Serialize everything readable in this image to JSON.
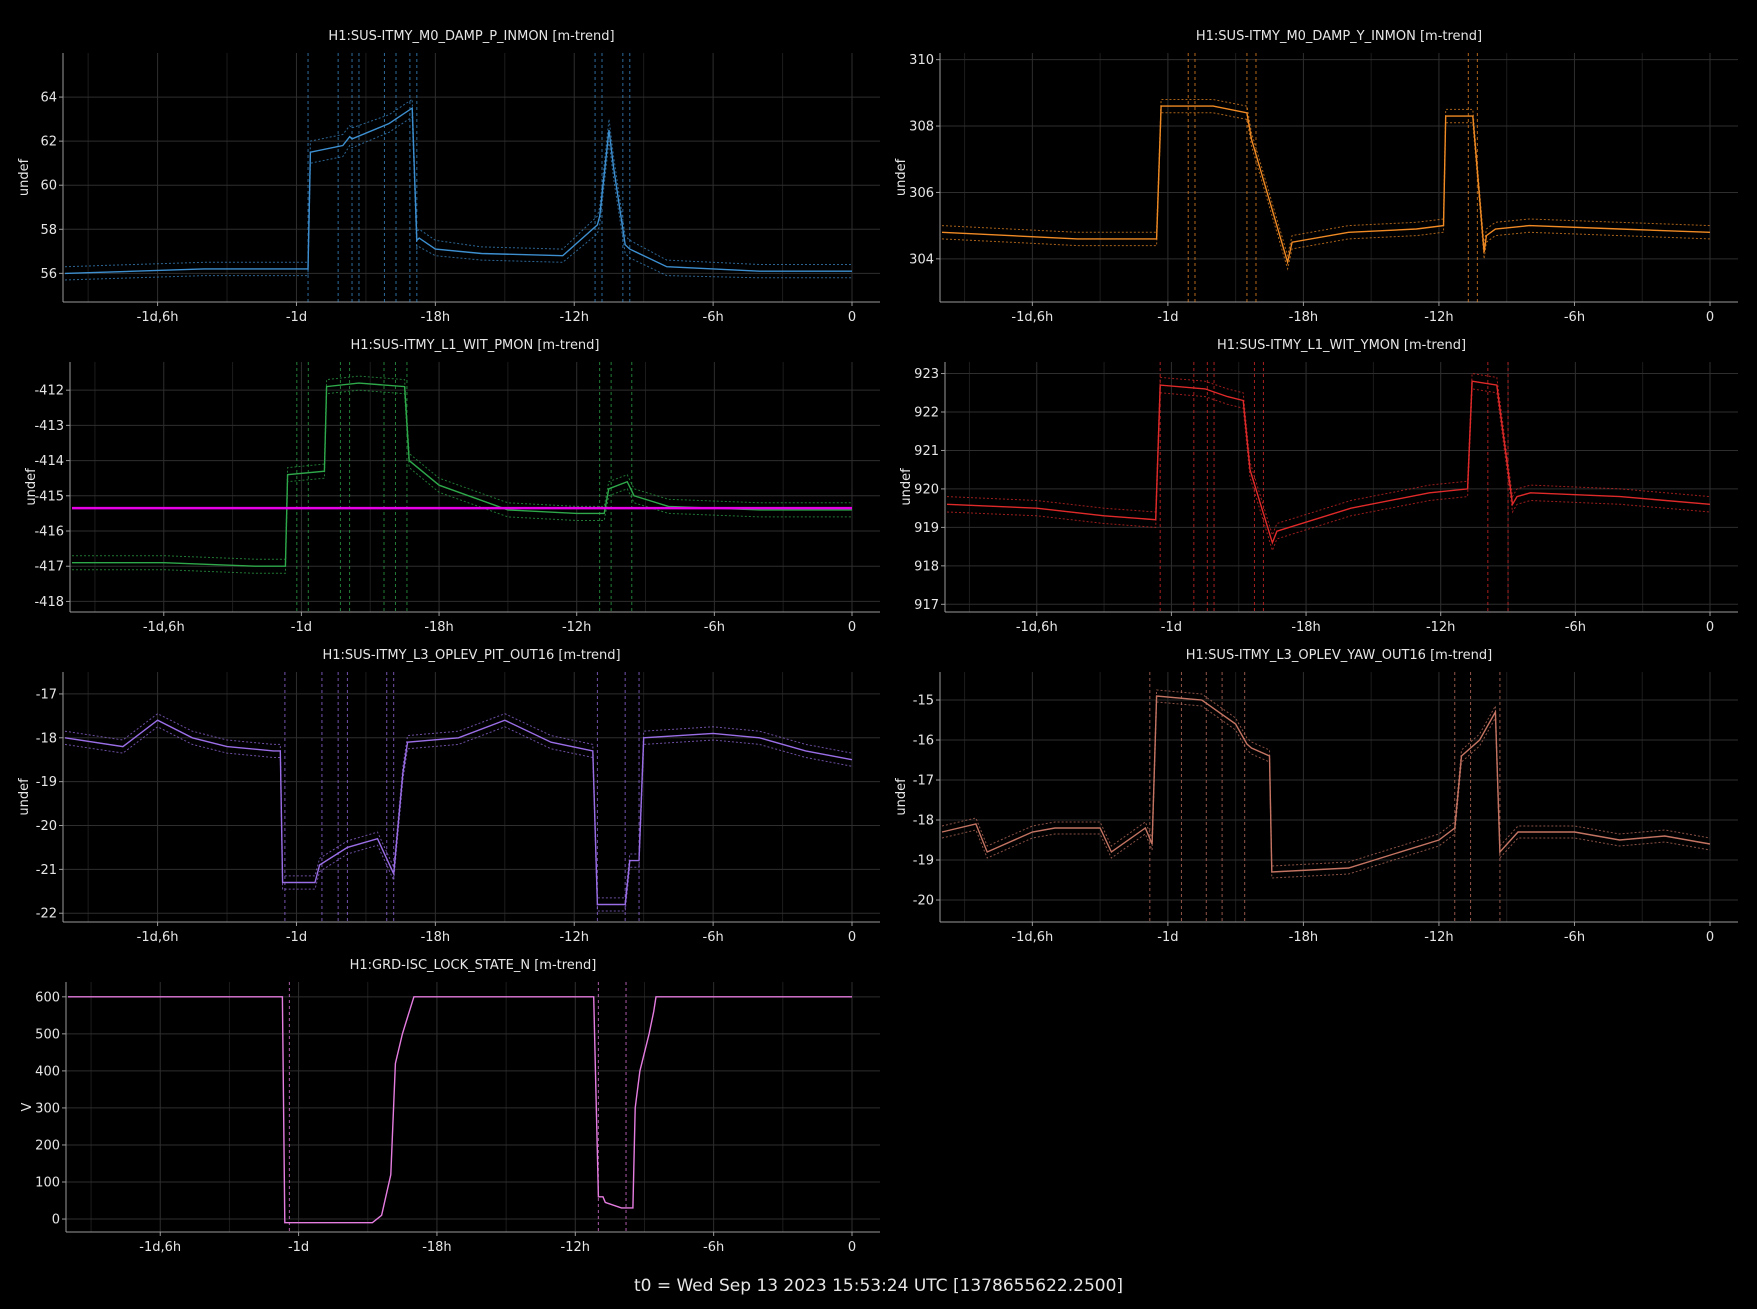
{
  "footer": "t0 = Wed Sep 13 2023 15:53:24 UTC [1378655622.2500]",
  "x_ticks": [
    "-1d,6h",
    "-1d",
    "-18h",
    "-12h",
    "-6h",
    "0"
  ],
  "chart_data": [
    {
      "type": "line",
      "title": "H1:SUS-ITMY_M0_DAMP_P_INMON [m-trend]",
      "ylabel": "undef",
      "color": "#3d8fd0",
      "xlim": [
        -34,
        0
      ],
      "ylim": [
        54.7,
        66
      ],
      "yticks": [
        56,
        58,
        60,
        62,
        64
      ],
      "x": [
        -34,
        -31,
        -28,
        -25,
        -23.5,
        -23.4,
        -22,
        -21.7,
        -21.6,
        -20,
        -19,
        -18.8,
        -18.7,
        -18,
        -16,
        -12.5,
        -11,
        -10.9,
        -10.5,
        -10.3,
        -9.8,
        -9.6,
        -8,
        -4,
        0
      ],
      "series": [
        {
          "name": "mean",
          "values": [
            56.0,
            56.1,
            56.2,
            56.2,
            56.2,
            61.5,
            61.8,
            62.2,
            62.1,
            62.8,
            63.5,
            57.5,
            57.6,
            57.1,
            56.9,
            56.8,
            58.2,
            58.6,
            62.5,
            60.8,
            57.3,
            57.1,
            56.3,
            56.1,
            56.1
          ]
        },
        {
          "name": "min",
          "values": [
            55.7,
            55.8,
            55.9,
            55.9,
            55.9,
            61.0,
            61.3,
            61.8,
            61.7,
            62.4,
            63.1,
            57.1,
            57.2,
            56.8,
            56.6,
            56.5,
            57.8,
            58.2,
            62.0,
            60.3,
            56.9,
            56.7,
            55.9,
            55.8,
            55.8
          ]
        },
        {
          "name": "max",
          "values": [
            56.3,
            56.4,
            56.5,
            56.5,
            56.5,
            62.0,
            62.3,
            62.7,
            62.6,
            63.2,
            63.9,
            57.9,
            58.0,
            57.5,
            57.2,
            57.1,
            58.6,
            59.0,
            63.0,
            61.3,
            57.7,
            57.5,
            56.6,
            56.4,
            56.4
          ]
        }
      ],
      "markers_x": [
        -23.5,
        -22.2,
        -21.6,
        -21.3,
        -20.2,
        -19.7,
        -19.1,
        -18.8,
        -11.1,
        -10.8,
        -9.9,
        -9.6
      ]
    },
    {
      "type": "line",
      "title": "H1:SUS-ITMY_M0_DAMP_Y_INMON [m-trend]",
      "ylabel": "undef",
      "color": "#f08a24",
      "xlim": [
        -34,
        0
      ],
      "ylim": [
        302.7,
        310.2
      ],
      "yticks": [
        304,
        306,
        308,
        310
      ],
      "x": [
        -34,
        -31,
        -28,
        -24.5,
        -24.3,
        -22,
        -20.5,
        -20.3,
        -18.7,
        -18.5,
        -16,
        -13,
        -11.8,
        -11.7,
        -10.5,
        -10.0,
        -9.9,
        -9.5,
        -8,
        -4,
        0
      ],
      "series": [
        {
          "name": "mean",
          "values": [
            304.8,
            304.7,
            304.6,
            304.6,
            308.6,
            308.6,
            308.4,
            307.6,
            303.9,
            304.5,
            304.8,
            304.9,
            305.0,
            308.3,
            308.3,
            304.2,
            304.7,
            304.9,
            305.0,
            304.9,
            304.8
          ]
        },
        {
          "name": "min",
          "values": [
            304.6,
            304.5,
            304.4,
            304.4,
            308.4,
            308.4,
            308.2,
            307.4,
            303.7,
            304.3,
            304.6,
            304.7,
            304.8,
            308.1,
            308.1,
            304.0,
            304.5,
            304.7,
            304.8,
            304.7,
            304.6
          ]
        },
        {
          "name": "max",
          "values": [
            305.0,
            304.9,
            304.8,
            304.8,
            308.8,
            308.8,
            308.6,
            307.8,
            304.1,
            304.7,
            305.0,
            305.1,
            305.2,
            308.5,
            308.5,
            304.4,
            304.9,
            305.1,
            305.2,
            305.1,
            305.0
          ]
        }
      ],
      "markers_x": [
        -23.1,
        -22.8,
        -20.5,
        -20.1,
        -10.7,
        -10.3
      ]
    },
    {
      "type": "line",
      "title": "H1:SUS-ITMY_L1_WIT_PMON [m-trend]",
      "ylabel": "undef",
      "color": "#2ea84a",
      "xlim": [
        -34,
        0
      ],
      "ylim": [
        -418.3,
        -411.2
      ],
      "yticks": [
        -418,
        -417,
        -416,
        -415,
        -414,
        -413,
        -412
      ],
      "x": [
        -34,
        -30,
        -26,
        -24.7,
        -24.6,
        -23,
        -22.9,
        -21.5,
        -19.5,
        -19.3,
        -18,
        -15,
        -12,
        -10.8,
        -10.6,
        -9.8,
        -9.5,
        -8,
        -4,
        0
      ],
      "series": [
        {
          "name": "mean",
          "values": [
            -416.9,
            -416.9,
            -417.0,
            -417.0,
            -414.4,
            -414.3,
            -411.9,
            -411.8,
            -411.9,
            -414.0,
            -414.7,
            -415.4,
            -415.5,
            -415.5,
            -414.8,
            -414.6,
            -415.0,
            -415.3,
            -415.4,
            -415.4
          ]
        },
        {
          "name": "min",
          "values": [
            -417.1,
            -417.1,
            -417.2,
            -417.2,
            -414.6,
            -414.5,
            -412.1,
            -412.0,
            -412.1,
            -414.2,
            -414.9,
            -415.6,
            -415.7,
            -415.7,
            -415.0,
            -414.8,
            -415.2,
            -415.5,
            -415.6,
            -415.6
          ]
        },
        {
          "name": "max",
          "values": [
            -416.7,
            -416.7,
            -416.8,
            -416.8,
            -414.2,
            -414.1,
            -411.7,
            -411.6,
            -411.7,
            -413.8,
            -414.5,
            -415.2,
            -415.3,
            -415.3,
            -414.6,
            -414.4,
            -414.8,
            -415.1,
            -415.2,
            -415.2
          ]
        }
      ],
      "reference": {
        "y": -415.35,
        "color": "#e600e6"
      },
      "markers_x": [
        -24.2,
        -23.7,
        -22.3,
        -21.9,
        -20.4,
        -19.9,
        -19.4,
        -11.0,
        -10.5,
        -9.6
      ]
    },
    {
      "type": "line",
      "title": "H1:SUS-ITMY_L1_WIT_YMON [m-trend]",
      "ylabel": "undef",
      "color": "#e02a2a",
      "xlim": [
        -34,
        0
      ],
      "ylim": [
        916.8,
        923.3
      ],
      "yticks": [
        917,
        918,
        919,
        920,
        921,
        922,
        923
      ],
      "x": [
        -34,
        -30,
        -27,
        -24.7,
        -24.5,
        -22.5,
        -21.5,
        -20.8,
        -20.5,
        -19.5,
        -19.3,
        -16,
        -12.5,
        -10.8,
        -10.6,
        -9.5,
        -8.8,
        -8.6,
        -8,
        -4,
        0
      ],
      "series": [
        {
          "name": "mean",
          "values": [
            919.6,
            919.5,
            919.3,
            919.2,
            922.7,
            922.6,
            922.4,
            922.3,
            920.5,
            918.6,
            918.9,
            919.5,
            919.9,
            920.0,
            922.8,
            922.7,
            919.6,
            919.8,
            919.9,
            919.8,
            919.6
          ]
        },
        {
          "name": "min",
          "values": [
            919.4,
            919.3,
            919.1,
            919.0,
            922.5,
            922.4,
            922.2,
            922.1,
            920.3,
            918.4,
            918.7,
            919.3,
            919.7,
            919.8,
            922.6,
            922.5,
            919.4,
            919.6,
            919.7,
            919.6,
            919.4
          ]
        },
        {
          "name": "max",
          "values": [
            919.8,
            919.7,
            919.5,
            919.4,
            922.9,
            922.8,
            922.6,
            922.5,
            920.7,
            918.8,
            919.1,
            919.7,
            920.1,
            920.2,
            923.0,
            922.9,
            919.8,
            920.0,
            920.1,
            920.0,
            919.8
          ]
        }
      ],
      "markers_x": [
        -24.5,
        -23.0,
        -22.4,
        -22.1,
        -20.3,
        -19.9,
        -9.9,
        -9.0
      ]
    },
    {
      "type": "line",
      "title": "H1:SUS-ITMY_L3_OPLEV_PIT_OUT16 [m-trend]",
      "ylabel": "undef",
      "color": "#9a6ee6",
      "xlim": [
        -34,
        0
      ],
      "ylim": [
        -22.2,
        -16.5
      ],
      "yticks": [
        -22,
        -21,
        -20,
        -19,
        -18,
        -17
      ],
      "x": [
        -34,
        -31.5,
        -30,
        -28.5,
        -27,
        -25,
        -24.7,
        -24.6,
        -23.2,
        -23.0,
        -21.8,
        -20.5,
        -19.8,
        -19.4,
        -19.2,
        -17,
        -15,
        -13,
        -11.2,
        -11.0,
        -9.8,
        -9.6,
        -9.2,
        -9.0,
        -6,
        -4,
        -2,
        0
      ],
      "series": [
        {
          "name": "mean",
          "values": [
            -18.0,
            -18.2,
            -17.6,
            -18.0,
            -18.2,
            -18.3,
            -18.3,
            -21.3,
            -21.3,
            -20.9,
            -20.5,
            -20.3,
            -21.1,
            -18.8,
            -18.1,
            -18.0,
            -17.6,
            -18.1,
            -18.3,
            -21.8,
            -21.8,
            -20.8,
            -20.8,
            -18.0,
            -17.9,
            -18.0,
            -18.3,
            -18.5
          ]
        },
        {
          "name": "min",
          "values": [
            -18.15,
            -18.35,
            -17.75,
            -18.15,
            -18.35,
            -18.45,
            -18.45,
            -21.45,
            -21.45,
            -21.05,
            -20.65,
            -20.45,
            -21.25,
            -18.95,
            -18.25,
            -18.15,
            -17.75,
            -18.25,
            -18.45,
            -21.95,
            -21.95,
            -20.95,
            -20.95,
            -18.15,
            -18.05,
            -18.15,
            -18.45,
            -18.65
          ]
        },
        {
          "name": "max",
          "values": [
            -17.85,
            -18.05,
            -17.45,
            -17.85,
            -18.05,
            -18.15,
            -18.15,
            -21.15,
            -21.15,
            -20.75,
            -20.35,
            -20.15,
            -20.95,
            -18.65,
            -17.95,
            -17.85,
            -17.45,
            -17.95,
            -18.15,
            -21.65,
            -21.65,
            -20.65,
            -20.65,
            -17.85,
            -17.75,
            -17.85,
            -18.15,
            -18.35
          ]
        }
      ],
      "markers_x": [
        -24.5,
        -22.9,
        -22.2,
        -21.8,
        -20.1,
        -19.8,
        -11.0,
        -9.8,
        -9.2
      ]
    },
    {
      "type": "line",
      "title": "H1:SUS-ITMY_L3_OPLEV_YAW_OUT16 [m-trend]",
      "ylabel": "undef",
      "color": "#c47462",
      "xlim": [
        -34,
        0
      ],
      "ylim": [
        -20.55,
        -14.3
      ],
      "yticks": [
        -20,
        -19,
        -18,
        -17,
        -16,
        -15
      ],
      "x": [
        -34,
        -32.5,
        -32,
        -30,
        -29,
        -27,
        -26.5,
        -25,
        -24.7,
        -24.5,
        -22.5,
        -21,
        -20.5,
        -20.3,
        -19.5,
        -19.4,
        -16,
        -12,
        -11.3,
        -11.0,
        -10.2,
        -9.5,
        -9.3,
        -8.5,
        -6,
        -4,
        -2,
        0
      ],
      "series": [
        {
          "name": "mean",
          "values": [
            -18.3,
            -18.1,
            -18.8,
            -18.3,
            -18.2,
            -18.2,
            -18.8,
            -18.2,
            -18.6,
            -14.9,
            -15.0,
            -15.6,
            -16.1,
            -16.2,
            -16.4,
            -19.3,
            -19.2,
            -18.5,
            -18.2,
            -16.4,
            -16.0,
            -15.3,
            -18.8,
            -18.3,
            -18.3,
            -18.5,
            -18.4,
            -18.6
          ]
        },
        {
          "name": "min",
          "values": [
            -18.45,
            -18.25,
            -18.95,
            -18.45,
            -18.35,
            -18.35,
            -18.95,
            -18.35,
            -18.75,
            -15.05,
            -15.15,
            -15.75,
            -16.25,
            -16.35,
            -16.55,
            -19.45,
            -19.35,
            -18.65,
            -18.35,
            -16.55,
            -16.15,
            -15.45,
            -18.95,
            -18.45,
            -18.45,
            -18.65,
            -18.55,
            -18.75
          ]
        },
        {
          "name": "max",
          "values": [
            -18.15,
            -17.95,
            -18.65,
            -18.15,
            -18.05,
            -18.05,
            -18.65,
            -18.05,
            -18.45,
            -14.75,
            -14.85,
            -15.45,
            -15.95,
            -16.05,
            -16.25,
            -19.15,
            -19.05,
            -18.35,
            -18.05,
            -16.25,
            -15.85,
            -15.15,
            -18.65,
            -18.15,
            -18.15,
            -18.35,
            -18.25,
            -18.45
          ]
        }
      ],
      "markers_x": [
        -24.8,
        -23.4,
        -22.3,
        -21.6,
        -20.6,
        -11.3,
        -10.6,
        -9.3
      ]
    },
    {
      "type": "line",
      "title": "H1:GRD-ISC_LOCK_STATE_N [m-trend]",
      "ylabel": "V",
      "color": "#e57ce0",
      "xlim": [
        -34,
        0
      ],
      "ylim": [
        -35,
        640
      ],
      "yticks": [
        0,
        100,
        200,
        300,
        400,
        500,
        600
      ],
      "x": [
        -34,
        -24.7,
        -24.6,
        -20.8,
        -20.4,
        -20.0,
        -19.8,
        -19.5,
        -19.3,
        -19.0,
        -18.5,
        -11.2,
        -11.0,
        -10.8,
        -10.7,
        -10.0,
        -9.5,
        -9.4,
        -9.2,
        -8.8,
        -8.6,
        -8.5,
        0
      ],
      "series": [
        {
          "name": "state",
          "values": [
            600,
            600,
            -10,
            -10,
            10,
            120,
            420,
            500,
            540,
            600,
            600,
            600,
            60,
            60,
            45,
            30,
            30,
            300,
            400,
            500,
            560,
            600,
            600
          ]
        }
      ],
      "markers_x": [
        -24.4,
        -11.0,
        -9.8
      ]
    }
  ]
}
